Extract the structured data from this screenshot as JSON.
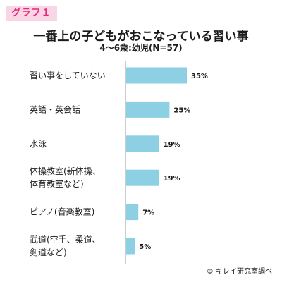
{
  "badge": "グラフ１",
  "title": "一番上の子どもがおこなっている習い事",
  "subtitle": "4〜6歳:幼児(N=57)",
  "credit": "© キレイ研究室調べ",
  "colors": {
    "bar": "#8dd0e4",
    "axis": "#999999",
    "badge_bg": "#f9d6e6",
    "badge_text": "#e8287a"
  },
  "chart_data": {
    "type": "bar",
    "orientation": "horizontal",
    "categories": [
      [
        "習い事をしていない"
      ],
      [
        "英語・英会話"
      ],
      [
        "水泳"
      ],
      [
        "体操教室(新体操、",
        "体育教室など)"
      ],
      [
        "ピアノ(音楽教室)"
      ],
      [
        "武道(空手、柔道、",
        "剣道など)"
      ]
    ],
    "values": [
      35,
      25,
      19,
      19,
      7,
      5
    ],
    "value_labels": [
      "35%",
      "25%",
      "19%",
      "19%",
      "7%",
      "5%"
    ],
    "unit": "%",
    "xlim": [
      0,
      40
    ],
    "grid": false,
    "legend": "none"
  }
}
